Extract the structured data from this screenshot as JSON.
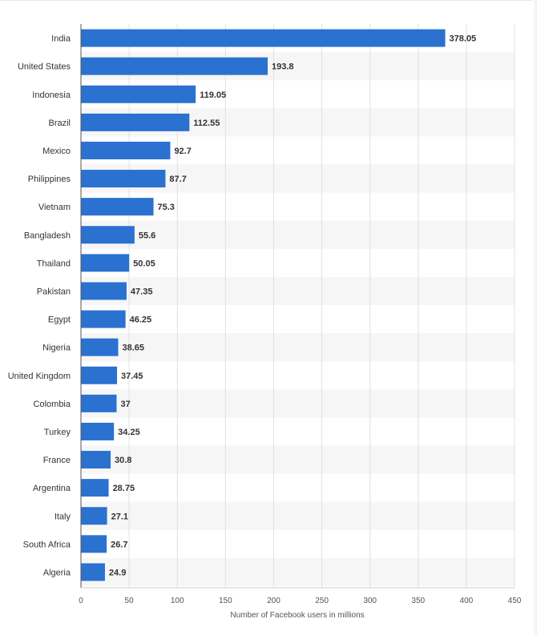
{
  "chart_data": {
    "type": "bar",
    "orientation": "horizontal",
    "categories": [
      "India",
      "United States",
      "Indonesia",
      "Brazil",
      "Mexico",
      "Philippines",
      "Vietnam",
      "Bangladesh",
      "Thailand",
      "Pakistan",
      "Egypt",
      "Nigeria",
      "United Kingdom",
      "Colombia",
      "Turkey",
      "France",
      "Argentina",
      "Italy",
      "South Africa",
      "Algeria"
    ],
    "values": [
      378.05,
      193.8,
      119.05,
      112.55,
      92.7,
      87.7,
      75.3,
      55.6,
      50.05,
      47.35,
      46.25,
      38.65,
      37.45,
      37,
      34.25,
      30.8,
      28.75,
      27.1,
      26.7,
      24.9
    ],
    "value_labels": [
      "378.05",
      "193.8",
      "119.05",
      "112.55",
      "92.7",
      "87.7",
      "75.3",
      "55.6",
      "50.05",
      "47.35",
      "46.25",
      "38.65",
      "37.45",
      "37",
      "34.25",
      "30.8",
      "28.75",
      "27.1",
      "26.7",
      "24.9"
    ],
    "title": "",
    "xlabel": "Number of Facebook users in millions",
    "ylabel": "",
    "xlim": [
      0,
      450
    ],
    "xticks": [
      0,
      50,
      100,
      150,
      200,
      250,
      300,
      350,
      400,
      450
    ],
    "grid": true,
    "legend": "none",
    "colors": {
      "bar": "#2a71d0",
      "band": "#f6f6f6",
      "grid": "#e0e0e0",
      "axis": "#555555"
    }
  }
}
